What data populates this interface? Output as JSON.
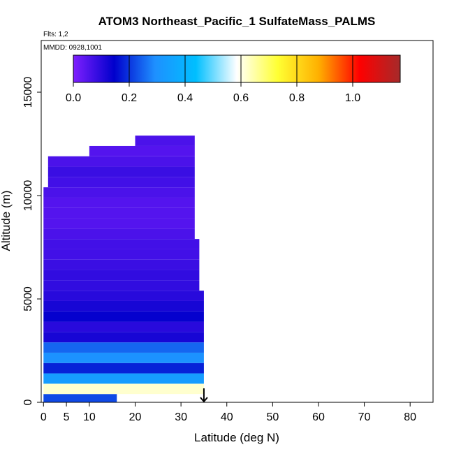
{
  "chart_data": {
    "type": "heatmap",
    "title": "ATOM3 Northeast_Pacific_1 SulfateMass_PALMS",
    "flights_label": "Flts: 1,2",
    "dates_label": "MMDD: 0928,1001",
    "xlabel": "Latitude (deg N)",
    "ylabel": "Altitude (m)",
    "xlim": [
      -0.5,
      85
    ],
    "ylim": [
      0,
      17500
    ],
    "x_ticks": [
      0,
      5,
      10,
      20,
      30,
      40,
      50,
      60,
      70,
      80
    ],
    "y_ticks": [
      0,
      5000,
      10000,
      15000
    ],
    "colorbar": {
      "range": [
        0,
        1.17
      ],
      "ticks": [
        0.0,
        0.2,
        0.4,
        0.6,
        0.8,
        1.0
      ],
      "tick_labels": [
        "0.0",
        "0.2",
        "0.4",
        "0.6",
        "0.8",
        "1.0"
      ],
      "colors": [
        "#7f1fff",
        "#0000cc",
        "#1e90ff",
        "#00bfff",
        "#ffffff",
        "#ffff33",
        "#ffb000",
        "#ff0000",
        "#a52a2a"
      ]
    },
    "arrow_latitude": 35,
    "altitude_bins": [
      {
        "alt": [
          0,
          400
        ],
        "lat": [
          0,
          16
        ],
        "value": 0.22
      },
      {
        "alt": [
          400,
          900
        ],
        "lat": [
          0,
          35
        ],
        "value": 0.62
      },
      {
        "alt": [
          900,
          1400
        ],
        "lat": [
          0,
          35
        ],
        "value": 0.33
      },
      {
        "alt": [
          1400,
          1900
        ],
        "lat": [
          0,
          35
        ],
        "value": 0.18
      },
      {
        "alt": [
          1900,
          2400
        ],
        "lat": [
          0,
          35
        ],
        "value": 0.3
      },
      {
        "alt": [
          2400,
          2900
        ],
        "lat": [
          0,
          35
        ],
        "value": 0.25
      },
      {
        "alt": [
          2900,
          3400
        ],
        "lat": [
          0,
          35
        ],
        "value": 0.12
      },
      {
        "alt": [
          3400,
          3900
        ],
        "lat": [
          0,
          35
        ],
        "value": 0.1
      },
      {
        "alt": [
          3900,
          4400
        ],
        "lat": [
          0,
          35
        ],
        "value": 0.14
      },
      {
        "alt": [
          4400,
          4900
        ],
        "lat": [
          0,
          35
        ],
        "value": 0.12
      },
      {
        "alt": [
          4900,
          5400
        ],
        "lat": [
          0,
          35
        ],
        "value": 0.1
      },
      {
        "alt": [
          5400,
          5900
        ],
        "lat": [
          0,
          34
        ],
        "value": 0.09
      },
      {
        "alt": [
          5900,
          6400
        ],
        "lat": [
          0,
          34
        ],
        "value": 0.09
      },
      {
        "alt": [
          6400,
          6900
        ],
        "lat": [
          0,
          34
        ],
        "value": 0.08
      },
      {
        "alt": [
          6900,
          7400
        ],
        "lat": [
          0,
          34
        ],
        "value": 0.07
      },
      {
        "alt": [
          7400,
          7900
        ],
        "lat": [
          0,
          34
        ],
        "value": 0.07
      },
      {
        "alt": [
          7900,
          8400
        ],
        "lat": [
          0,
          33
        ],
        "value": 0.06
      },
      {
        "alt": [
          8400,
          8900
        ],
        "lat": [
          0,
          33
        ],
        "value": 0.05
      },
      {
        "alt": [
          8900,
          9400
        ],
        "lat": [
          0,
          33
        ],
        "value": 0.05
      },
      {
        "alt": [
          9400,
          9900
        ],
        "lat": [
          0,
          33
        ],
        "value": 0.05
      },
      {
        "alt": [
          9900,
          10400
        ],
        "lat": [
          0,
          33
        ],
        "value": 0.06
      },
      {
        "alt": [
          10400,
          10900
        ],
        "lat": [
          1,
          33
        ],
        "value": 0.07
      },
      {
        "alt": [
          10900,
          11400
        ],
        "lat": [
          1,
          33
        ],
        "value": 0.08
      },
      {
        "alt": [
          11400,
          11900
        ],
        "lat": [
          1,
          33
        ],
        "value": 0.06
      },
      {
        "alt": [
          11900,
          12400
        ],
        "lat": [
          10,
          33
        ],
        "value": 0.05
      },
      {
        "alt": [
          12400,
          12900
        ],
        "lat": [
          20,
          33
        ],
        "value": 0.06
      }
    ]
  }
}
